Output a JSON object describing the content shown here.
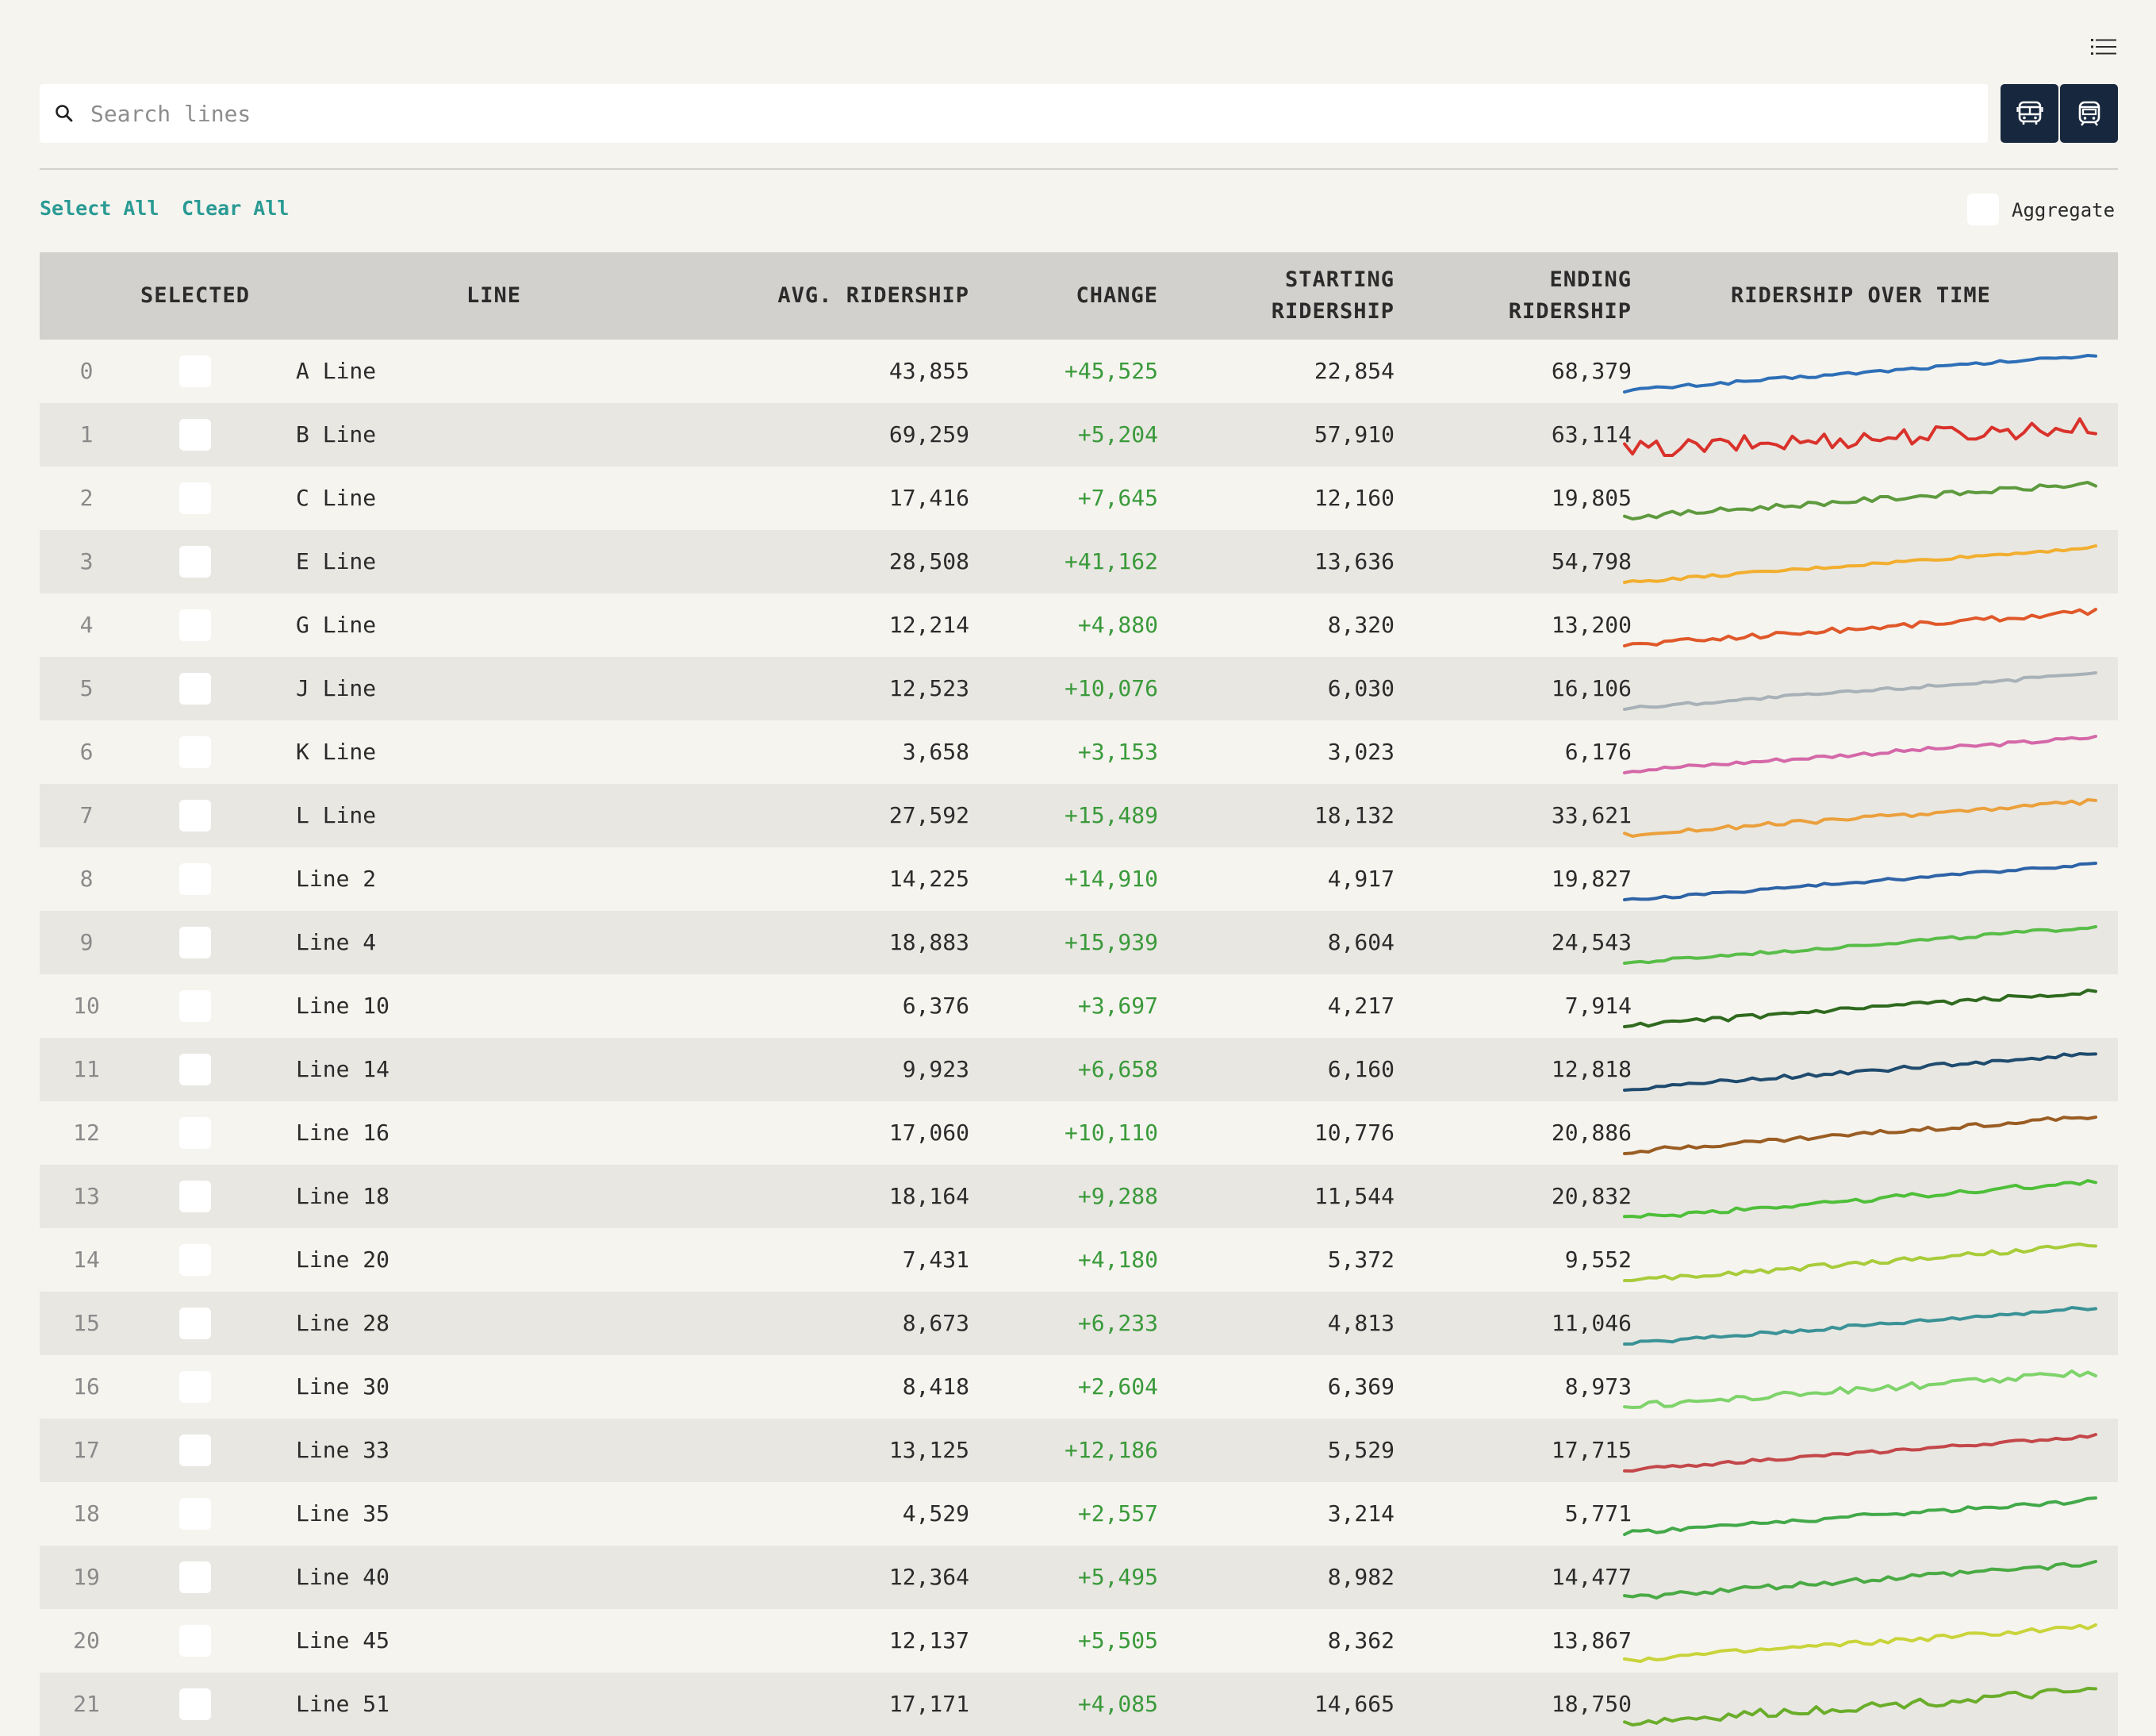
{
  "search": {
    "placeholder": "Search lines",
    "value": ""
  },
  "controls": {
    "select_all": "Select All",
    "clear_all": "Clear All",
    "aggregate_label": "Aggregate",
    "aggregate_checked": false
  },
  "icons": {
    "list": "list-icon",
    "search": "search-icon",
    "bus": "bus-icon",
    "train": "train-icon"
  },
  "colors": {
    "accent": "#2a9a94",
    "button_bg": "#17273d",
    "positive_change": "#3a9a3a"
  },
  "table": {
    "headers": {
      "selected": "SELECTED",
      "line": "LINE",
      "avg": "AVG. RIDERSHIP",
      "change": "CHANGE",
      "start_1": "STARTING",
      "start_2": "RIDERSHIP",
      "end_1": "ENDING",
      "end_2": "RIDERSHIP",
      "over_time": "RIDERSHIP OVER TIME"
    },
    "rows": [
      {
        "idx": "0",
        "line": "A Line",
        "avg": "43,855",
        "change": "+45,525",
        "start": "22,854",
        "end": "68,379",
        "color": "#2e6fb7",
        "selected": false
      },
      {
        "idx": "1",
        "line": "B Line",
        "avg": "69,259",
        "change": "+5,204",
        "start": "57,910",
        "end": "63,114",
        "color": "#d9322b",
        "selected": false
      },
      {
        "idx": "2",
        "line": "C Line",
        "avg": "17,416",
        "change": "+7,645",
        "start": "12,160",
        "end": "19,805",
        "color": "#5e9a3e",
        "selected": false
      },
      {
        "idx": "3",
        "line": "E Line",
        "avg": "28,508",
        "change": "+41,162",
        "start": "13,636",
        "end": "54,798",
        "color": "#f2ae2e",
        "selected": false
      },
      {
        "idx": "4",
        "line": "G Line",
        "avg": "12,214",
        "change": "+4,880",
        "start": "8,320",
        "end": "13,200",
        "color": "#e0582a",
        "selected": false
      },
      {
        "idx": "5",
        "line": "J Line",
        "avg": "12,523",
        "change": "+10,076",
        "start": "6,030",
        "end": "16,106",
        "color": "#a8b1b8",
        "selected": false
      },
      {
        "idx": "6",
        "line": "K Line",
        "avg": "3,658",
        "change": "+3,153",
        "start": "3,023",
        "end": "6,176",
        "color": "#d468a8",
        "selected": false
      },
      {
        "idx": "7",
        "line": "L Line",
        "avg": "27,592",
        "change": "+15,489",
        "start": "18,132",
        "end": "33,621",
        "color": "#eba03c",
        "selected": false
      },
      {
        "idx": "8",
        "line": "Line 2",
        "avg": "14,225",
        "change": "+14,910",
        "start": "4,917",
        "end": "19,827",
        "color": "#2e63a6",
        "selected": false
      },
      {
        "idx": "9",
        "line": "Line 4",
        "avg": "18,883",
        "change": "+15,939",
        "start": "8,604",
        "end": "24,543",
        "color": "#58bd48",
        "selected": false
      },
      {
        "idx": "10",
        "line": "Line 10",
        "avg": "6,376",
        "change": "+3,697",
        "start": "4,217",
        "end": "7,914",
        "color": "#2f6a1f",
        "selected": false
      },
      {
        "idx": "11",
        "line": "Line 14",
        "avg": "9,923",
        "change": "+6,658",
        "start": "6,160",
        "end": "12,818",
        "color": "#1f4b6e",
        "selected": false
      },
      {
        "idx": "12",
        "line": "Line 16",
        "avg": "17,060",
        "change": "+10,110",
        "start": "10,776",
        "end": "20,886",
        "color": "#9a5d23",
        "selected": false
      },
      {
        "idx": "13",
        "line": "Line 18",
        "avg": "18,164",
        "change": "+9,288",
        "start": "11,544",
        "end": "20,832",
        "color": "#4fbf3a",
        "selected": false
      },
      {
        "idx": "14",
        "line": "Line 20",
        "avg": "7,431",
        "change": "+4,180",
        "start": "5,372",
        "end": "9,552",
        "color": "#a8cc3a",
        "selected": false
      },
      {
        "idx": "15",
        "line": "Line 28",
        "avg": "8,673",
        "change": "+6,233",
        "start": "4,813",
        "end": "11,046",
        "color": "#3a9296",
        "selected": false
      },
      {
        "idx": "16",
        "line": "Line 30",
        "avg": "8,418",
        "change": "+2,604",
        "start": "6,369",
        "end": "8,973",
        "color": "#7ed36a",
        "selected": false
      },
      {
        "idx": "17",
        "line": "Line 33",
        "avg": "13,125",
        "change": "+12,186",
        "start": "5,529",
        "end": "17,715",
        "color": "#c4474a",
        "selected": false
      },
      {
        "idx": "18",
        "line": "Line 35",
        "avg": "4,529",
        "change": "+2,557",
        "start": "3,214",
        "end": "5,771",
        "color": "#43a94a",
        "selected": false
      },
      {
        "idx": "19",
        "line": "Line 40",
        "avg": "12,364",
        "change": "+5,495",
        "start": "8,982",
        "end": "14,477",
        "color": "#4aaa44",
        "selected": false
      },
      {
        "idx": "20",
        "line": "Line 45",
        "avg": "12,137",
        "change": "+5,505",
        "start": "8,362",
        "end": "13,867",
        "color": "#c9d43a",
        "selected": false
      },
      {
        "idx": "21",
        "line": "Line 51",
        "avg": "17,171",
        "change": "+4,085",
        "start": "14,665",
        "end": "18,750",
        "color": "#6aad2a",
        "selected": false
      }
    ]
  }
}
